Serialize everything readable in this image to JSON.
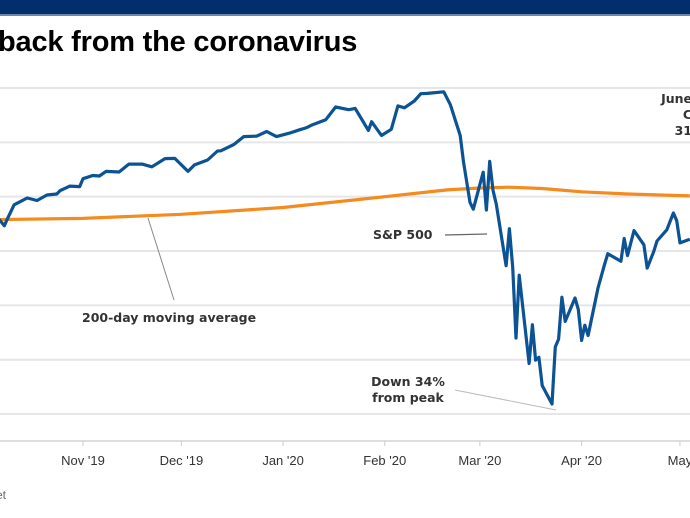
{
  "header": {
    "title": "back from the coronavirus"
  },
  "source": "et",
  "colors": {
    "top_bar": "#002f6c",
    "sp500": "#0b5394",
    "moving_average": "#f58a1f",
    "gridline": "#e6e6e6",
    "annotation": "#333333"
  },
  "chart_data": {
    "type": "line",
    "title": "back from the coronavirus",
    "xlabel": "",
    "ylabel": "",
    "ylim": [
      2100,
      3500
    ],
    "y_gridlines": [
      3400,
      3200,
      3000,
      2800,
      2600,
      2400,
      2200
    ],
    "grid": true,
    "x_tick_labels": [
      "'19",
      "Nov '19",
      "Dec '19",
      "Jan '20",
      "Feb '20",
      "Mar '20",
      "Apr '20",
      "May"
    ],
    "x_ticks_dates": [
      "2019-10-01",
      "2019-11-01",
      "2019-12-01",
      "2020-01-01",
      "2020-02-01",
      "2020-03-01",
      "2020-04-01",
      "2020-05-01"
    ],
    "series": [
      {
        "name": "S&P 500",
        "dates": [
          "2019-10-04",
          "2019-10-08",
          "2019-10-09",
          "2019-10-11",
          "2019-10-15",
          "2019-10-18",
          "2019-10-21",
          "2019-10-24",
          "2019-10-25",
          "2019-10-28",
          "2019-10-31",
          "2019-11-01",
          "2019-11-04",
          "2019-11-06",
          "2019-11-08",
          "2019-11-12",
          "2019-11-15",
          "2019-11-19",
          "2019-11-22",
          "2019-11-26",
          "2019-11-29",
          "2019-12-03",
          "2019-12-05",
          "2019-12-09",
          "2019-12-12",
          "2019-12-13",
          "2019-12-17",
          "2019-12-20",
          "2019-12-24",
          "2019-12-27",
          "2019-12-30",
          "2020-01-03",
          "2020-01-06",
          "2020-01-08",
          "2020-01-10",
          "2020-01-14",
          "2020-01-17",
          "2020-01-21",
          "2020-01-23",
          "2020-01-27",
          "2020-01-28",
          "2020-01-31",
          "2020-02-03",
          "2020-02-05",
          "2020-02-07",
          "2020-02-10",
          "2020-02-12",
          "2020-02-14",
          "2020-02-19",
          "2020-02-21",
          "2020-02-24",
          "2020-02-25",
          "2020-02-27",
          "2020-02-28",
          "2020-03-02",
          "2020-03-03",
          "2020-03-04",
          "2020-03-05",
          "2020-03-06",
          "2020-03-09",
          "2020-03-10",
          "2020-03-11",
          "2020-03-12",
          "2020-03-13",
          "2020-03-16",
          "2020-03-17",
          "2020-03-18",
          "2020-03-19",
          "2020-03-20",
          "2020-03-23",
          "2020-03-24",
          "2020-03-25",
          "2020-03-26",
          "2020-03-27",
          "2020-03-30",
          "2020-03-31",
          "2020-04-01",
          "2020-04-02",
          "2020-04-03",
          "2020-04-06",
          "2020-04-08",
          "2020-04-09",
          "2020-04-13",
          "2020-04-14",
          "2020-04-15",
          "2020-04-17",
          "2020-04-20",
          "2020-04-21",
          "2020-04-23",
          "2020-04-24",
          "2020-04-27",
          "2020-04-29",
          "2020-04-30",
          "2020-05-01",
          "2020-05-04"
        ],
        "values": [
          2952,
          2893,
          2920,
          2970,
          2995,
          2986,
          3006,
          3010,
          3022,
          3039,
          3037,
          3066,
          3078,
          3076,
          3093,
          3091,
          3120,
          3120,
          3110,
          3140,
          3141,
          3093,
          3117,
          3135,
          3168,
          3169,
          3192,
          3221,
          3223,
          3240,
          3221,
          3234,
          3246,
          3253,
          3265,
          3283,
          3330,
          3320,
          3325,
          3244,
          3276,
          3225,
          3248,
          3334,
          3327,
          3352,
          3379,
          3380,
          3386,
          3338,
          3225,
          3128,
          2979,
          2954,
          3090,
          2951,
          3130,
          3024,
          2972,
          2746,
          2882,
          2741,
          2480,
          2711,
          2386,
          2529,
          2398,
          2409,
          2305,
          2237,
          2447,
          2476,
          2630,
          2541,
          2627,
          2585,
          2471,
          2527,
          2489,
          2664,
          2750,
          2790,
          2762,
          2846,
          2783,
          2875,
          2823,
          2737,
          2798,
          2837,
          2878,
          2940,
          2912,
          2830,
          2843
        ]
      },
      {
        "name": "200-day moving average",
        "dates": [
          "2019-10-01",
          "2019-11-01",
          "2019-12-01",
          "2020-01-01",
          "2020-02-01",
          "2020-02-20",
          "2020-03-01",
          "2020-03-10",
          "2020-03-20",
          "2020-04-01",
          "2020-04-15",
          "2020-05-04"
        ],
        "values": [
          2915,
          2920,
          2935,
          2960,
          3000,
          3025,
          3032,
          3035,
          3030,
          3018,
          3010,
          3003
        ]
      }
    ],
    "annotations": [
      {
        "text": "S&P 500",
        "target_series": "S&P 500"
      },
      {
        "text": "200-day moving average",
        "target_series": "200-day moving average"
      },
      {
        "text": "Down 34%",
        "text2": "from peak",
        "target_date": "2020-03-23",
        "target_value": 2237
      },
      {
        "text": "June",
        "text2": "C",
        "text3": "31"
      }
    ]
  }
}
